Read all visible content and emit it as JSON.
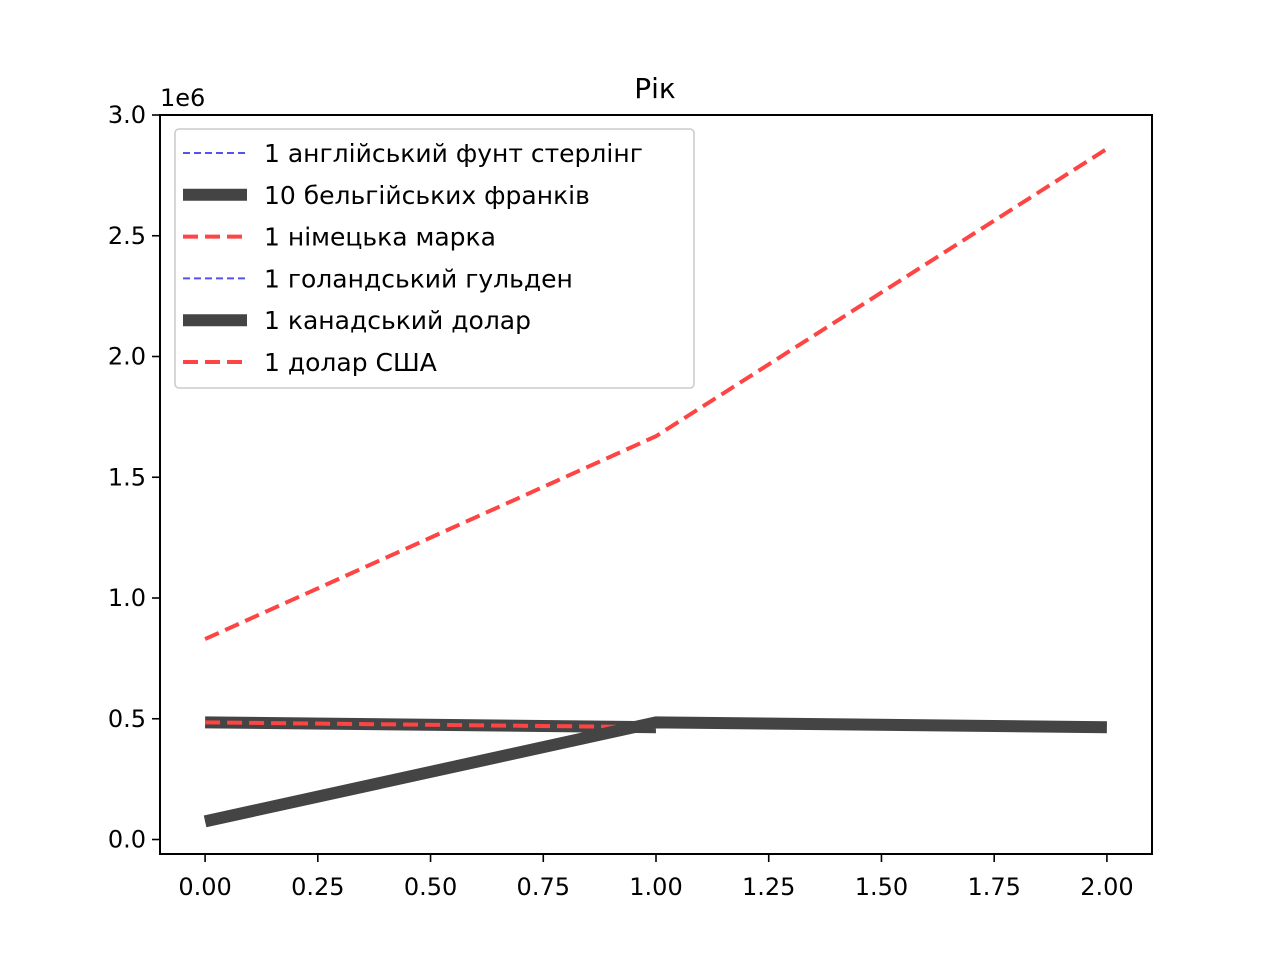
{
  "chart_data": {
    "type": "line",
    "title": "Рік",
    "xlabel": "",
    "ylabel": "",
    "y_offset_label": "1e6",
    "y_scale": 1000000,
    "xlim": [
      -0.1,
      2.1
    ],
    "ylim": [
      -0.06,
      3.0
    ],
    "xticks": [
      0.0,
      0.25,
      0.5,
      0.75,
      1.0,
      1.25,
      1.5,
      1.75,
      2.0
    ],
    "xtick_labels": [
      "0.00",
      "0.25",
      "0.50",
      "0.75",
      "1.00",
      "1.25",
      "1.50",
      "1.75",
      "2.00"
    ],
    "yticks": [
      0.0,
      0.5,
      1.0,
      1.5,
      2.0,
      2.5,
      3.0
    ],
    "ytick_labels": [
      "0.0",
      "0.5",
      "1.0",
      "1.5",
      "2.0",
      "2.5",
      "3.0"
    ],
    "grid": false,
    "legend_position": "top-left",
    "series": [
      {
        "name": "1 англійський фунт стерлінг",
        "x": [
          0,
          1
        ],
        "y": [
          0.485,
          0.465
        ],
        "color": "#4040ee",
        "style": "thin-dashed"
      },
      {
        "name": "10 бельгійських франків",
        "x": [
          0,
          1
        ],
        "y": [
          0.485,
          0.465
        ],
        "color": "#444444",
        "style": "thick-solid"
      },
      {
        "name": "1 німецька марка",
        "x": [
          0,
          1
        ],
        "y": [
          0.485,
          0.465
        ],
        "color": "#ff4444",
        "style": "dashed"
      },
      {
        "name": "1 голандський гульден",
        "x": [
          0,
          1,
          2
        ],
        "y": [
          0.075,
          0.485,
          0.465
        ],
        "color": "#4040ee",
        "style": "thin-dashed"
      },
      {
        "name": "1 канадський долар",
        "x": [
          0,
          1,
          2
        ],
        "y": [
          0.075,
          0.485,
          0.465
        ],
        "color": "#444444",
        "style": "thick-solid"
      },
      {
        "name": "1 долар США",
        "x": [
          0,
          1,
          2
        ],
        "y": [
          0.83,
          1.67,
          2.86
        ],
        "color": "#ff4444",
        "style": "dashed"
      }
    ]
  }
}
